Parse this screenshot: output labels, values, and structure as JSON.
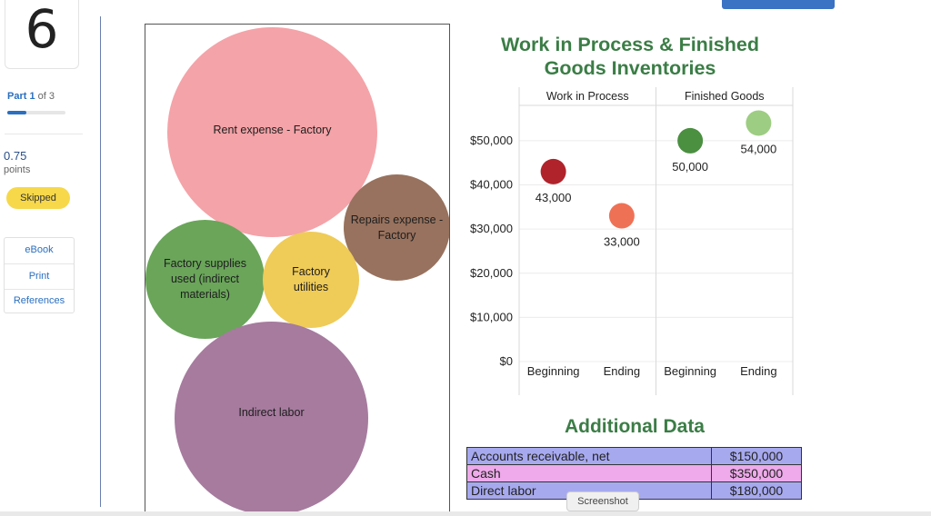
{
  "question": {
    "number": "6"
  },
  "part": {
    "current": "Part 1",
    "total": "of 3",
    "progress": 0.33
  },
  "score": {
    "value": "0.75",
    "label": "points"
  },
  "status_badge": "Skipped",
  "resources": [
    "eBook",
    "Print",
    "References"
  ],
  "bubbles": [
    {
      "label": "Rent expense - Factory",
      "color": "#f4a3a8"
    },
    {
      "label": "Repairs expense - Factory",
      "color": "#98725e"
    },
    {
      "label": "Factory supplies used (indirect materials)",
      "color": "#6aa55a"
    },
    {
      "label": "Factory utilities",
      "color": "#efcb58"
    },
    {
      "label": "Indirect labor",
      "color": "#a67b9e"
    }
  ],
  "chart_data": {
    "type": "scatter",
    "title": "Work in Process & Finished Goods Inventories",
    "panels": [
      {
        "name": "Work in Process",
        "categories": [
          "Beginning",
          "Ending"
        ],
        "values": [
          43000,
          33000
        ],
        "value_labels": [
          "43,000",
          "33,000"
        ],
        "colors": [
          "#b0232b",
          "#ef7155"
        ]
      },
      {
        "name": "Finished Goods",
        "categories": [
          "Beginning",
          "Ending"
        ],
        "values": [
          50000,
          54000
        ],
        "value_labels": [
          "50,000",
          "54,000"
        ],
        "colors": [
          "#4b8f41",
          "#9dcd82"
        ]
      }
    ],
    "y_ticks": [
      0,
      10000,
      20000,
      30000,
      40000,
      50000
    ],
    "y_tick_labels": [
      "$0",
      "$10,000",
      "$20,000",
      "$30,000",
      "$40,000",
      "$50,000"
    ],
    "ylim": [
      0,
      58000
    ],
    "grid": true
  },
  "additional_data": {
    "title": "Additional Data",
    "rows": [
      {
        "label": "Accounts receivable, net",
        "value": "$150,000"
      },
      {
        "label": "Cash",
        "value": "$350,000"
      },
      {
        "label": "Direct labor",
        "value": "$180,000"
      }
    ]
  },
  "tooltip": "Screenshot"
}
